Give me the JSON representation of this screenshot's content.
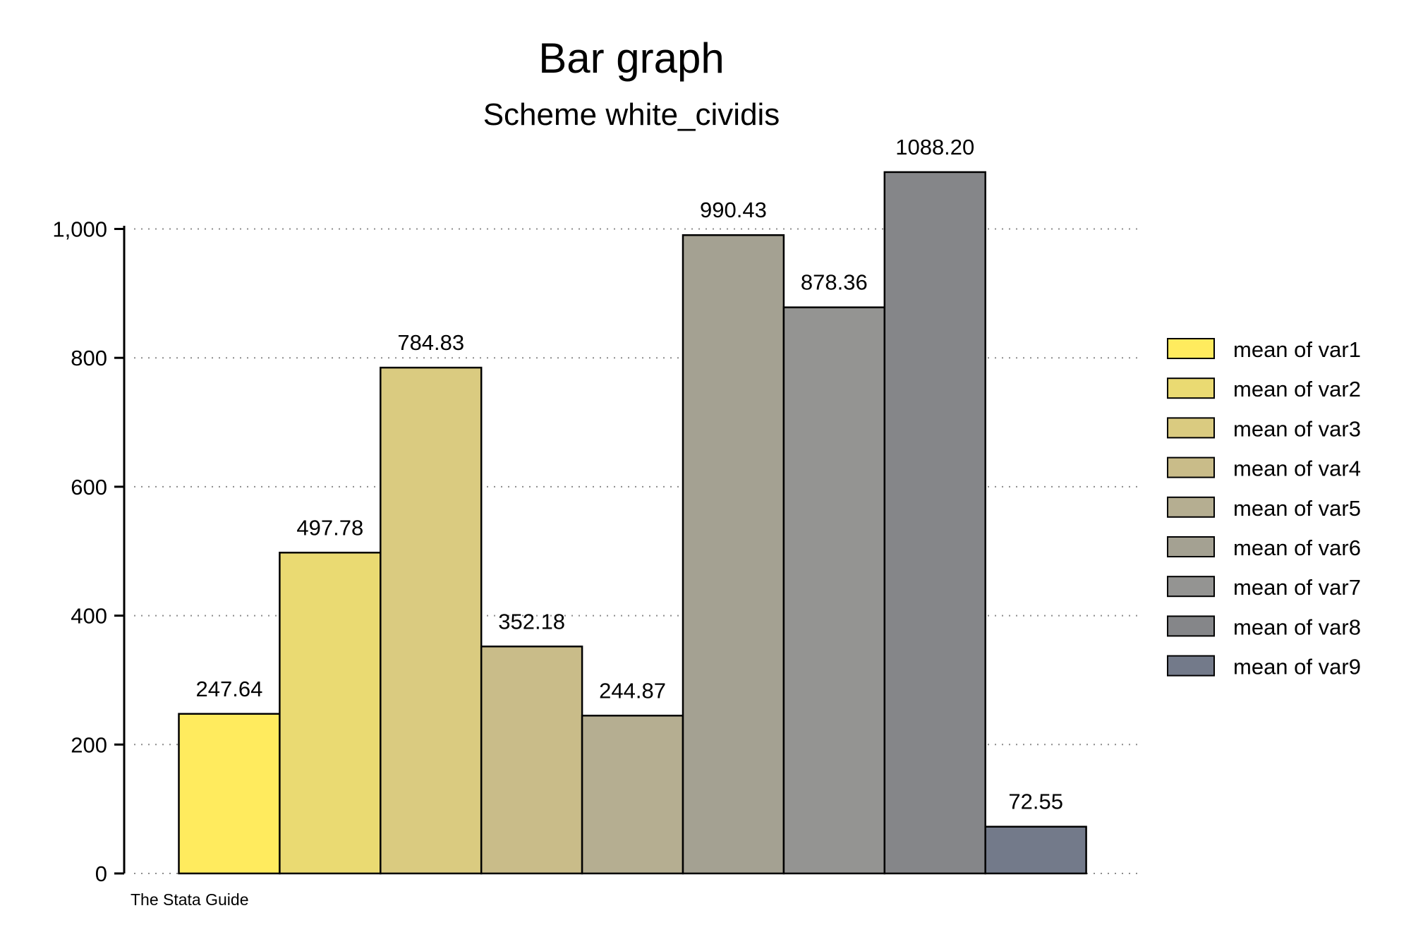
{
  "chart_data": {
    "type": "bar",
    "title": "Bar graph",
    "subtitle": "Scheme white_cividis",
    "note": "The Stata Guide",
    "xlabel": "",
    "ylabel": "",
    "ylim": [
      0,
      1000
    ],
    "yticks": [
      0,
      200,
      400,
      600,
      800,
      1000
    ],
    "ytick_labels": [
      "0",
      "200",
      "400",
      "600",
      "800",
      "1,000"
    ],
    "grid": true,
    "legend_position": "right",
    "series": [
      {
        "name": "mean of var1",
        "value": 247.64,
        "label": "247.64",
        "color": "#FFEB5E"
      },
      {
        "name": "mean of var2",
        "value": 497.78,
        "label": "497.78",
        "color": "#EADA72"
      },
      {
        "name": "mean of var3",
        "value": 784.83,
        "label": "784.83",
        "color": "#DACB80"
      },
      {
        "name": "mean of var4",
        "value": 352.18,
        "label": "352.18",
        "color": "#C9BC89"
      },
      {
        "name": "mean of var5",
        "value": 244.87,
        "label": "244.87",
        "color": "#B5AE91"
      },
      {
        "name": "mean of var6",
        "value": 990.43,
        "label": "990.43",
        "color": "#A4A192"
      },
      {
        "name": "mean of var7",
        "value": 878.36,
        "label": "878.36",
        "color": "#949492"
      },
      {
        "name": "mean of var8",
        "value": 1088.2,
        "label": "1088.20",
        "color": "#858689"
      },
      {
        "name": "mean of var9",
        "value": 72.55,
        "label": "72.55",
        "color": "#737A8A"
      }
    ]
  }
}
